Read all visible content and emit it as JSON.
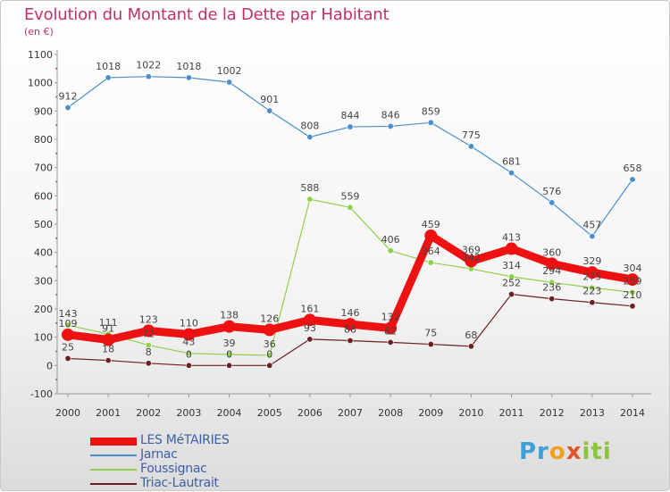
{
  "title": "Evolution du Montant de la Dette par Habitant",
  "unit": "(en €)",
  "logo": "Proxiti",
  "chart_data": {
    "type": "line",
    "x": [
      "2000",
      "2001",
      "2002",
      "2003",
      "2004",
      "2005",
      "2006",
      "2007",
      "2008",
      "2009",
      "2010",
      "2011",
      "2012",
      "2013",
      "2014"
    ],
    "ylim": [
      -100,
      1100
    ],
    "yticks": [
      -100,
      0,
      100,
      200,
      300,
      400,
      500,
      600,
      700,
      800,
      900,
      1000,
      1100
    ],
    "grid": false,
    "legend_position": "bottom-left",
    "series": [
      {
        "name": "LES MéTAIRIES",
        "color": "#ee1111",
        "values": [
          109,
          91,
          123,
          110,
          138,
          126,
          161,
          146,
          132,
          459,
          369,
          413,
          360,
          329,
          304
        ],
        "labels": [
          "109",
          "91",
          "123",
          "110",
          "138",
          "126",
          "161",
          "146",
          "132",
          "459",
          "369",
          "413",
          "360",
          "329",
          "304"
        ]
      },
      {
        "name": "Jarnac",
        "color": "#4a8ecb",
        "values": [
          912,
          1018,
          1022,
          1018,
          1002,
          901,
          808,
          844,
          846,
          859,
          775,
          681,
          576,
          457,
          658
        ],
        "labels": [
          "912",
          "1018",
          "1022",
          "1018",
          "1002",
          "901",
          "808",
          "844",
          "846",
          "859",
          "775",
          "681",
          "576",
          "457",
          "658"
        ]
      },
      {
        "name": "Foussignac",
        "color": "#8ed04a",
        "values": [
          143,
          111,
          72,
          43,
          39,
          36,
          588,
          559,
          406,
          364,
          342,
          314,
          294,
          275,
          259
        ],
        "labels": [
          "143",
          "111",
          "72",
          "43",
          "39",
          "36",
          "588",
          "559",
          "406",
          "364",
          "342",
          "314",
          "294",
          "275",
          "259"
        ]
      },
      {
        "name": "Triac-Lautrait",
        "color": "#6b1f1f",
        "values": [
          25,
          18,
          8,
          0,
          0,
          0,
          93,
          88,
          82,
          75,
          68,
          252,
          236,
          223,
          210
        ],
        "labels": [
          "25",
          "18",
          "8",
          "0",
          "0",
          "0",
          "93",
          "88",
          "82",
          "75",
          "68",
          "252",
          "236",
          "223",
          "210"
        ]
      }
    ]
  }
}
